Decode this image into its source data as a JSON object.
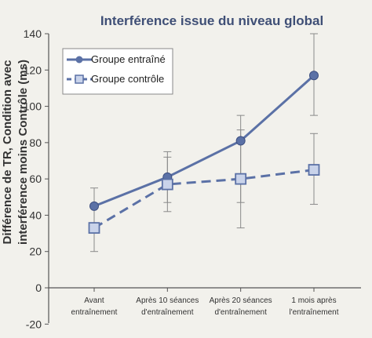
{
  "colors": {
    "background": "#f2f1ec",
    "title": "#3f4f76",
    "series": "#5b71a6",
    "axis": "#555555",
    "error_bar": "#8a8a8a"
  },
  "chart_data": {
    "type": "line",
    "title": "Interférence issue du niveau global",
    "ylabel_lines": [
      "Différence de TR, Condition avec",
      "interférence moins Contrôle (ms)"
    ],
    "xlabel": "",
    "ylim": [
      -20,
      140
    ],
    "yticks": [
      -20,
      0,
      20,
      40,
      60,
      80,
      100,
      120,
      140
    ],
    "grid": false,
    "legend_position": "top-left",
    "categories": [
      [
        "Avant",
        "entraînement"
      ],
      [
        "Après 10 séances",
        "d'entraînement"
      ],
      [
        "Après 20 séances",
        "d'entraînement"
      ],
      [
        "1 mois après",
        "l'entraînement"
      ]
    ],
    "series": [
      {
        "name": "Groupe entraîné",
        "marker": "circle",
        "line_style": "solid",
        "values": [
          45,
          61,
          81,
          117
        ],
        "error_low": [
          35,
          47,
          47,
          95
        ],
        "error_high": [
          55,
          75,
          95,
          140
        ]
      },
      {
        "name": "Groupe contrôle",
        "marker": "square",
        "line_style": "dashed",
        "values": [
          33,
          57,
          60,
          65
        ],
        "error_low": [
          20,
          42,
          33,
          46
        ],
        "error_high": [
          46,
          72,
          87,
          85
        ]
      }
    ]
  }
}
